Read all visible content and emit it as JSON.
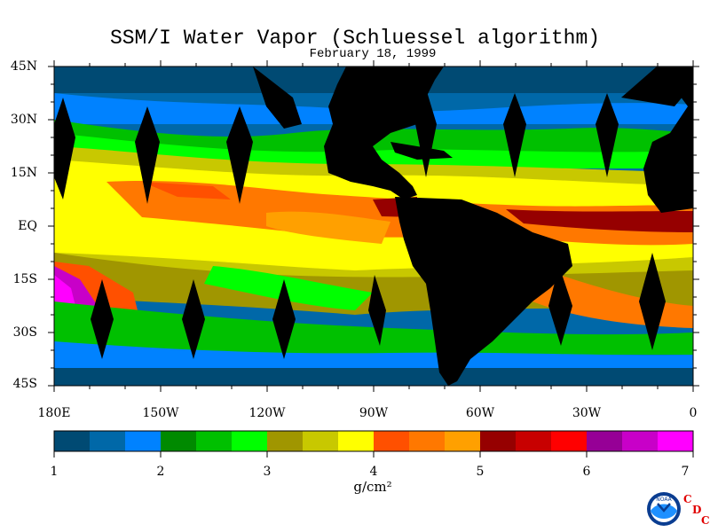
{
  "title": "SSM/I Water Vapor (Schluessel algorithm)",
  "subtitle": "February 18, 1999",
  "y_tick_labels": [
    "45N",
    "30N",
    "15N",
    "EQ",
    "15S",
    "30S",
    "45S"
  ],
  "x_tick_labels": [
    "180E",
    "150W",
    "120W",
    "90W",
    "60W",
    "30W",
    "0"
  ],
  "colorbar": {
    "tick_labels": [
      "1",
      "2",
      "3",
      "4",
      "5",
      "6",
      "7"
    ],
    "unit_label": "g/cm²",
    "colors": [
      "#004a73",
      "#0068a8",
      "#0082ff",
      "#008a00",
      "#00c000",
      "#00ff00",
      "#a09600",
      "#c8c800",
      "#ffff00",
      "#ff5000",
      "#ff7800",
      "#ffa000",
      "#960000",
      "#c80000",
      "#ff0000",
      "#960096",
      "#c800c8",
      "#ff00ff"
    ]
  },
  "logo_text": "NOAA",
  "credit_letters": [
    "C",
    "D",
    "C"
  ],
  "colors": {
    "land": "#000000",
    "swath_gap": "#000000",
    "dry_high_lat": "#004a73",
    "tropical_peak": "#960000"
  }
}
